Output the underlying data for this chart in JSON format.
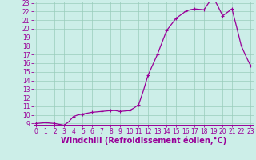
{
  "x_values": [
    0,
    0.5,
    1,
    1.5,
    2,
    2.5,
    3,
    3.5,
    4,
    4.5,
    5,
    5.5,
    6,
    6.5,
    7,
    7.5,
    8,
    8.5,
    9,
    9.5,
    10,
    10.5,
    11,
    11.5,
    12,
    12.5,
    13,
    13.5,
    14,
    14.5,
    15,
    15.5,
    16,
    16.5,
    17,
    17.5,
    18,
    18.5,
    19,
    19.5,
    20,
    20.5,
    21,
    21.5,
    22,
    22.5,
    23
  ],
  "y_values": [
    9.0,
    9.05,
    9.1,
    9.05,
    9.0,
    8.9,
    8.8,
    9.2,
    9.8,
    10.0,
    10.1,
    10.2,
    10.3,
    10.35,
    10.4,
    10.45,
    10.5,
    10.5,
    10.4,
    10.45,
    10.5,
    10.8,
    11.2,
    12.8,
    14.6,
    15.8,
    17.0,
    18.4,
    19.8,
    20.5,
    21.2,
    21.6,
    22.0,
    22.2,
    22.3,
    22.25,
    22.2,
    23.0,
    23.6,
    22.6,
    21.5,
    21.9,
    22.3,
    20.2,
    18.0,
    16.8,
    15.7
  ],
  "line_color": "#990099",
  "marker": "+",
  "marker_size": 3,
  "marker_every": 2,
  "background_color": "#cceee8",
  "grid_color": "#99ccbb",
  "xlabel": "Windchill (Refroidissement éolien,°C)",
  "xlabel_fontsize": 7,
  "ylim_min": 9,
  "ylim_max": 23,
  "xlim_min": 0,
  "xlim_max": 23,
  "ytick_values": [
    9,
    10,
    11,
    12,
    13,
    14,
    15,
    16,
    17,
    18,
    19,
    20,
    21,
    22,
    23
  ],
  "xtick_values": [
    0,
    1,
    2,
    3,
    4,
    5,
    6,
    7,
    8,
    9,
    10,
    11,
    12,
    13,
    14,
    15,
    16,
    17,
    18,
    19,
    20,
    21,
    22,
    23
  ],
  "tick_fontsize": 5.5,
  "tick_color": "#990099",
  "spine_color": "#990099",
  "axes_label_color": "#990099",
  "linewidth": 0.9
}
